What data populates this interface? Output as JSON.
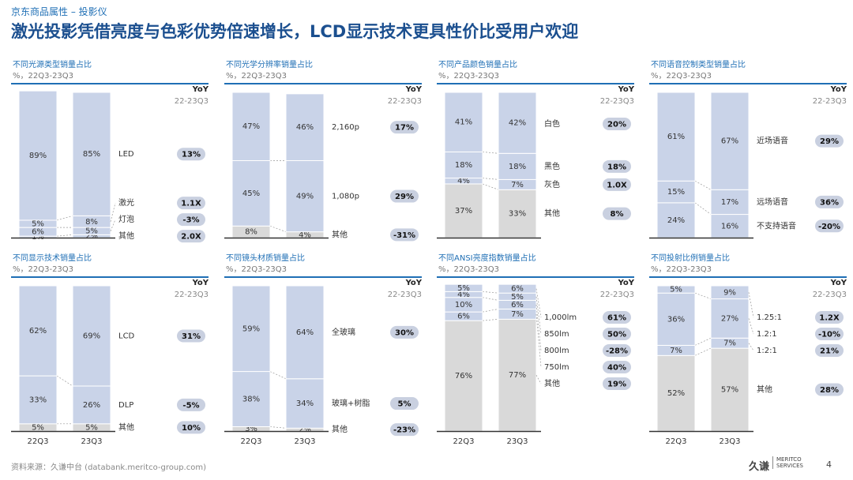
{
  "header": {
    "breadcrumb": "京东商品属性 – 投影仪",
    "title": "激光投影凭借亮度与色彩优势倍速增长，LCD显示技术更具性价比受用户欢迎"
  },
  "yoy_label": "YoY",
  "yoy_period": "22-23Q3",
  "footer": {
    "source": "资料来源：久谦中台 (databank.meritco-group.com)",
    "logo_cn": "久谦",
    "logo_en1": "MERITCO",
    "logo_en2": "SERVICES",
    "page": "4"
  },
  "chart_data": [
    {
      "type": "bar",
      "stacked": true,
      "percent": true,
      "title": "不同光源类型销量占比",
      "subtitle": "%，22Q3-23Q3",
      "categories": [
        "22Q3",
        "23Q3"
      ],
      "show_xlabels": false,
      "series": [
        {
          "name": "其他",
          "values": [
            1,
            2
          ],
          "yoy": "2.0X"
        },
        {
          "name": "灯泡",
          "values": [
            6,
            5
          ],
          "yoy": "-3%"
        },
        {
          "name": "激光",
          "values": [
            5,
            8
          ],
          "yoy": "1.1X"
        },
        {
          "name": "LED",
          "values": [
            89,
            85
          ],
          "yoy": "13%"
        }
      ]
    },
    {
      "type": "bar",
      "stacked": true,
      "percent": true,
      "title": "不同光学分辨率销量占比",
      "subtitle": "%，22Q3-23Q3",
      "categories": [
        "22Q3",
        "23Q3"
      ],
      "show_xlabels": false,
      "series": [
        {
          "name": "其他",
          "values": [
            8,
            4
          ],
          "yoy": "-31%"
        },
        {
          "name": "1,080p",
          "values": [
            45,
            49
          ],
          "yoy": "29%"
        },
        {
          "name": "2,160p",
          "values": [
            47,
            46
          ],
          "yoy": "17%"
        }
      ]
    },
    {
      "type": "bar",
      "stacked": true,
      "percent": true,
      "title": "不同产品颜色销量占比",
      "subtitle": "%，22Q3-23Q3",
      "categories": [
        "22Q3",
        "23Q3"
      ],
      "show_xlabels": false,
      "series": [
        {
          "name": "其他",
          "values": [
            37,
            33
          ],
          "yoy": "8%"
        },
        {
          "name": "灰色",
          "values": [
            4,
            7
          ],
          "yoy": "1.0X"
        },
        {
          "name": "黑色",
          "values": [
            18,
            18
          ],
          "yoy": "18%"
        },
        {
          "name": "白色",
          "values": [
            41,
            42
          ],
          "yoy": "20%"
        }
      ]
    },
    {
      "type": "bar",
      "stacked": true,
      "percent": true,
      "title": "不同语音控制类型销量占比",
      "subtitle": "%，22Q3-23Q3",
      "categories": [
        "22Q3",
        "23Q3"
      ],
      "show_xlabels": false,
      "series": [
        {
          "name": "不支持语音",
          "values": [
            24,
            16
          ],
          "yoy": "-20%"
        },
        {
          "name": "远场语音",
          "values": [
            15,
            17
          ],
          "yoy": "36%"
        },
        {
          "name": "近场语音",
          "values": [
            61,
            67
          ],
          "yoy": "29%"
        }
      ]
    },
    {
      "type": "bar",
      "stacked": true,
      "percent": true,
      "title": "不同显示技术销量占比",
      "subtitle": "%，22Q3-23Q3",
      "categories": [
        "22Q3",
        "23Q3"
      ],
      "show_xlabels": true,
      "series": [
        {
          "name": "其他",
          "values": [
            5,
            5
          ],
          "yoy": "10%"
        },
        {
          "name": "DLP",
          "values": [
            33,
            26
          ],
          "yoy": "-5%"
        },
        {
          "name": "LCD",
          "values": [
            62,
            69
          ],
          "yoy": "31%"
        }
      ]
    },
    {
      "type": "bar",
      "stacked": true,
      "percent": true,
      "title": "不同镜头材质销量占比",
      "subtitle": "%，22Q3-23Q3",
      "categories": [
        "22Q3",
        "23Q3"
      ],
      "show_xlabels": true,
      "series": [
        {
          "name": "其他",
          "values": [
            3,
            2
          ],
          "yoy": "-23%"
        },
        {
          "name": "玻璃+树脂",
          "values": [
            38,
            34
          ],
          "yoy": "5%"
        },
        {
          "name": "全玻璃",
          "values": [
            59,
            64
          ],
          "yoy": "30%"
        }
      ]
    },
    {
      "type": "bar",
      "stacked": true,
      "percent": true,
      "title": "不同ANSI亮度指数销量占比",
      "subtitle": "%，22Q3-23Q3",
      "categories": [
        "22Q3",
        "23Q3"
      ],
      "show_xlabels": true,
      "series": [
        {
          "name": "其他",
          "values": [
            76,
            77
          ],
          "yoy": "19%"
        },
        {
          "name": "750lm",
          "values": [
            6,
            7
          ],
          "yoy": "40%"
        },
        {
          "name": "800lm",
          "values": [
            10,
            6
          ],
          "yoy": "-28%"
        },
        {
          "name": "850lm",
          "values": [
            4,
            5
          ],
          "yoy": "50%"
        },
        {
          "name": "1,000lm",
          "values": [
            5,
            6
          ],
          "yoy": "61%"
        }
      ]
    },
    {
      "type": "bar",
      "stacked": true,
      "percent": true,
      "title": "不同投射比例销量占比",
      "subtitle": "%，22Q3-23Q3",
      "categories": [
        "22Q3",
        "23Q3"
      ],
      "show_xlabels": true,
      "series": [
        {
          "name": "其他",
          "values": [
            52,
            57
          ],
          "yoy": "28%"
        },
        {
          "name": "1:2:1",
          "values": [
            7,
            7
          ],
          "yoy": "21%"
        },
        {
          "name": "1.2:1",
          "values": [
            36,
            27
          ],
          "yoy": "-10%"
        },
        {
          "name": "1.25:1",
          "values": [
            5,
            9
          ],
          "yoy": "1.2X"
        }
      ]
    }
  ],
  "colors": {
    "bar_blue": "#c9d3e8",
    "bar_grey": "#d9d9d9",
    "badge": "#c9d0e0",
    "accent": "#1f6fb5",
    "title": "#1b4f8f"
  }
}
